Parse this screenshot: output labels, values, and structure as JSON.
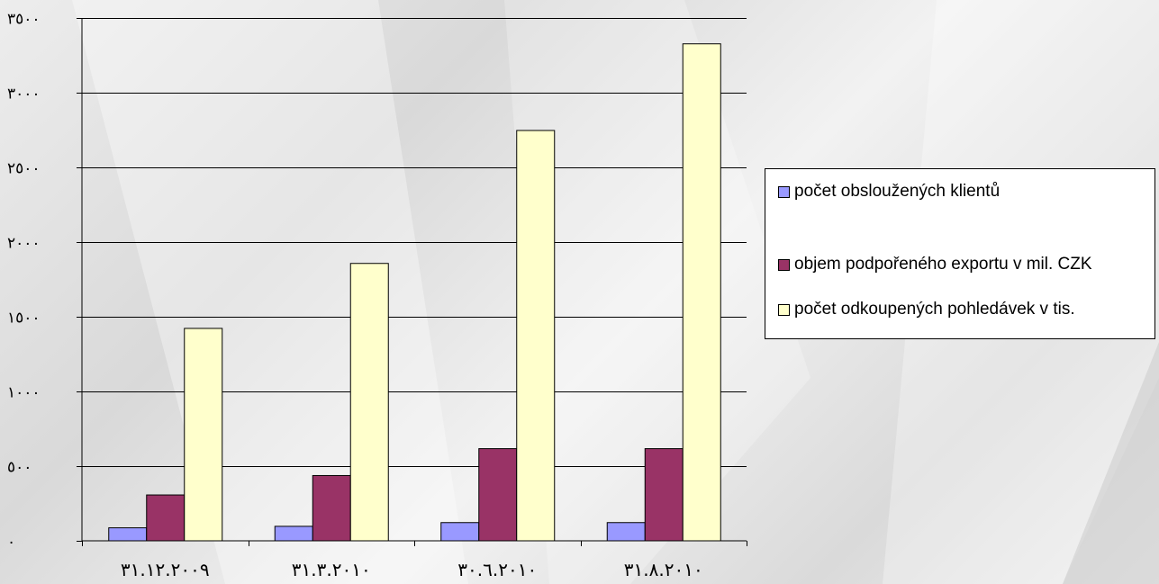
{
  "chart_data": {
    "type": "bar",
    "categories": [
      "٣١.١٢.٢٠٠٩",
      "٣١.٣.٢٠١٠",
      "٣٠.٦.٢٠١٠",
      "٣١.٨.٢٠١٠"
    ],
    "series": [
      {
        "name": "počet obsloužených klientů",
        "color": "#9999ff",
        "values": [
          90,
          100,
          125,
          125
        ]
      },
      {
        "name": "objem podpořeného exportu v mil. CZK",
        "color": "#993366",
        "values": [
          310,
          440,
          620,
          620
        ]
      },
      {
        "name": "počet odkoupených pohledávek v tis.",
        "color": "#ffffcc",
        "values": [
          1425,
          1860,
          2750,
          3330
        ]
      }
    ],
    "ylim": [
      0,
      3500
    ],
    "yticks": [
      0,
      500,
      1000,
      1500,
      2000,
      2500,
      3000,
      3500
    ],
    "ytick_labels": [
      "٠",
      "٥٠٠",
      "١٠٠٠",
      "١٥٠٠",
      "٢٠٠٠",
      "٢٥٠٠",
      "٣٠٠٠",
      "٣٥٠٠"
    ],
    "grid": true,
    "legend_position": "right",
    "title": "",
    "xlabel": "",
    "ylabel": ""
  },
  "legend": {
    "items": [
      {
        "label": "počet obsloužených klientů",
        "color": "#9999ff"
      },
      {
        "label": "objem podpořeného exportu v mil. CZK",
        "color": "#993366"
      },
      {
        "label": "počet odkoupených pohledávek v tis.",
        "color": "#ffffcc"
      }
    ]
  }
}
